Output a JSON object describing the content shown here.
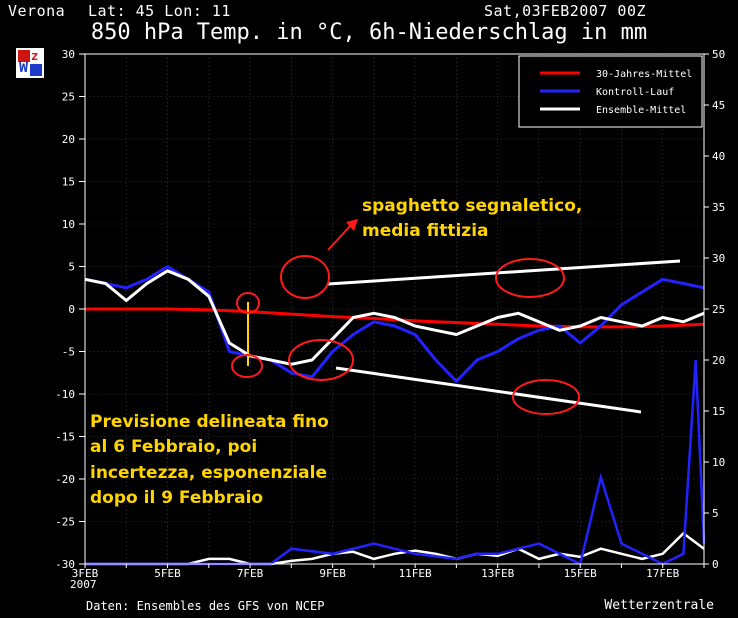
{
  "header": {
    "location": "Verona",
    "coords": "Lat: 45 Lon: 11",
    "run": "Sat,03FEB2007 00Z"
  },
  "chart_data": {
    "type": "line",
    "title": "850 hPa Temp. in °C, 6h-Niederschlag in mm",
    "source": "Daten: Ensembles des GFS von NCEP",
    "brand": "Wetterzentrale",
    "logo_text": "Wz",
    "x_start_date": "2007-02-03",
    "x_days": 15,
    "x_tick_labels": [
      "3FEB",
      "5FEB",
      "7FEB",
      "9FEB",
      "11FEB",
      "13FEB",
      "15FEB",
      "17FEB"
    ],
    "x_year_label": "2007",
    "y_left": {
      "lim": [
        -30,
        30
      ],
      "ticks": [
        -30,
        -25,
        -20,
        -15,
        -10,
        -5,
        0,
        5,
        10,
        15,
        20,
        25,
        30
      ],
      "unit": "°C"
    },
    "y_right": {
      "lim": [
        0,
        50
      ],
      "ticks": [
        0,
        5,
        10,
        15,
        20,
        25,
        30,
        35,
        40,
        45,
        50
      ],
      "unit": "mm"
    },
    "legend_position": "top-right",
    "colors": {
      "mittel30": "#ff0000",
      "kontroll": "#2222ff",
      "ensemble": "#ffffff",
      "annotation": "#ffd400",
      "circle": "#ff1a1a"
    },
    "series": [
      {
        "name": "30-Jahres-Mittel",
        "color": "#ff0000",
        "x": [
          0,
          1,
          2,
          3,
          4,
          5,
          6,
          7,
          8,
          9,
          10,
          11,
          12,
          13,
          14,
          15
        ],
        "y": [
          0.0,
          0.0,
          0.0,
          -0.1,
          -0.3,
          -0.6,
          -0.9,
          -1.1,
          -1.4,
          -1.6,
          -1.8,
          -2.0,
          -2.1,
          -2.1,
          -2.0,
          -1.8
        ]
      },
      {
        "name": "Kontroll-Lauf",
        "color": "#2222ff",
        "x": [
          0,
          0.5,
          1,
          1.5,
          2,
          2.5,
          3,
          3.5,
          4,
          4.5,
          5,
          5.5,
          6,
          6.5,
          7,
          7.5,
          8,
          8.5,
          9,
          9.5,
          10,
          10.5,
          11,
          11.5,
          12,
          12.5,
          13,
          13.5,
          14,
          14.5,
          15
        ],
        "y": [
          3.5,
          3.0,
          2.5,
          3.5,
          5.0,
          3.5,
          2.0,
          -5.0,
          -5.5,
          -6.0,
          -7.5,
          -8.0,
          -5.0,
          -3.0,
          -1.5,
          -2.0,
          -3.0,
          -6.0,
          -8.5,
          -6.0,
          -5.0,
          -3.5,
          -2.5,
          -2.0,
          -4.0,
          -2.0,
          0.5,
          2.0,
          3.5,
          3.0,
          2.5
        ]
      },
      {
        "name": "Ensemble-Mittel",
        "color": "#ffffff",
        "x": [
          0,
          0.5,
          1,
          1.5,
          2,
          2.5,
          3,
          3.5,
          4,
          4.5,
          5,
          5.5,
          6,
          6.5,
          7,
          7.5,
          8,
          8.5,
          9,
          9.5,
          10,
          10.5,
          11,
          11.5,
          12,
          12.5,
          13,
          13.5,
          14,
          14.5,
          15
        ],
        "y": [
          3.5,
          3.0,
          1.0,
          3.0,
          4.5,
          3.5,
          1.5,
          -4.0,
          -5.5,
          -6.0,
          -6.5,
          -6.0,
          -3.5,
          -1.0,
          -0.5,
          -1.0,
          -2.0,
          -2.5,
          -3.0,
          -2.0,
          -1.0,
          -0.5,
          -1.5,
          -2.5,
          -2.0,
          -1.0,
          -1.5,
          -2.0,
          -1.0,
          -1.5,
          -0.5
        ]
      }
    ],
    "precip_series": [
      {
        "name": "Ensemble-Mittel",
        "color": "#ffffff",
        "x": [
          0,
          0.5,
          1,
          1.5,
          2,
          2.5,
          3,
          3.5,
          4,
          4.5,
          5,
          5.5,
          6,
          6.5,
          7,
          7.5,
          8,
          8.5,
          9,
          9.5,
          10,
          10.5,
          11,
          11.5,
          12,
          12.5,
          13,
          13.5,
          14,
          14.5,
          15
        ],
        "y": [
          0,
          0,
          0,
          0,
          0,
          0,
          0.5,
          0.5,
          0,
          0,
          0.3,
          0.5,
          1.0,
          1.2,
          0.5,
          1.0,
          1.3,
          1.0,
          0.5,
          1.0,
          0.8,
          1.5,
          0.5,
          1.0,
          0.7,
          1.5,
          1.0,
          0.5,
          1.0,
          3.0,
          1.5
        ]
      },
      {
        "name": "Kontroll-Lauf",
        "color": "#2222ff",
        "x": [
          0,
          1,
          2,
          3,
          4,
          4.5,
          5,
          6,
          7,
          8,
          9,
          9.5,
          10,
          11,
          12,
          12.5,
          13,
          14,
          14.5,
          14.8,
          15
        ],
        "y": [
          0,
          0,
          0,
          0,
          0,
          0,
          1.5,
          1,
          2,
          1,
          0.5,
          1,
          1,
          2,
          0,
          8.5,
          2,
          0,
          1,
          20,
          2
        ]
      }
    ],
    "annotations": [
      {
        "text": [
          "spaghetto segnaletico,",
          "media fittizia"
        ]
      },
      {
        "text": [
          "Previsione delineata fino",
          "al 6 Febbraio, poi",
          "incertezza, esponenziale",
          "dopo il 9 Febbraio"
        ]
      }
    ]
  }
}
